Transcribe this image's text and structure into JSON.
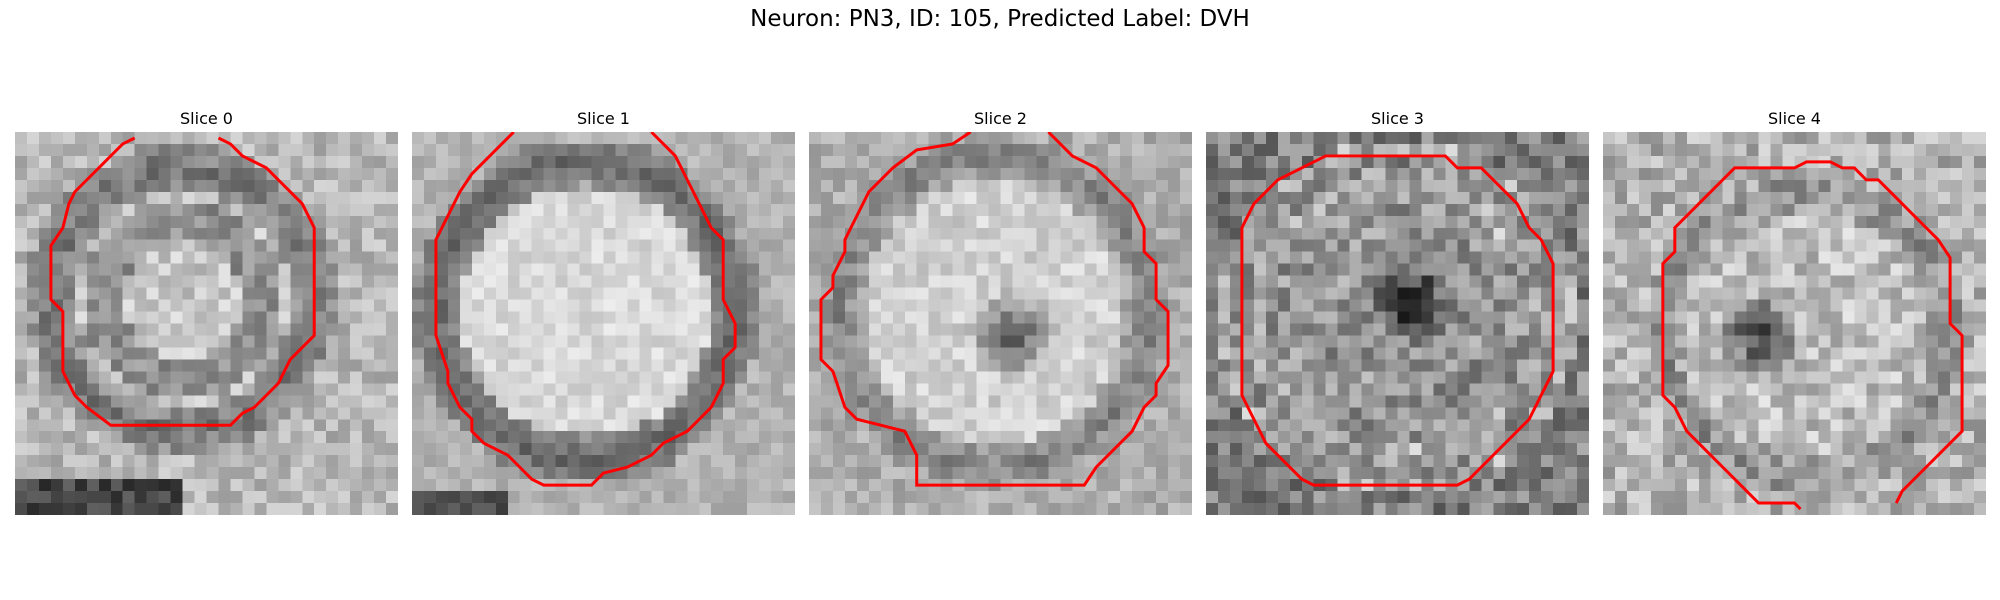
{
  "figure": {
    "title": "Neuron: PN3, ID: 105, Predicted Label: DVH"
  },
  "panels": [
    {
      "title": "Slice 0"
    },
    {
      "title": "Slice 1"
    },
    {
      "title": "Slice 2"
    },
    {
      "title": "Slice 3"
    },
    {
      "title": "Slice 4"
    }
  ],
  "colors": {
    "contour": "#ff0000",
    "background": "#ffffff"
  }
}
